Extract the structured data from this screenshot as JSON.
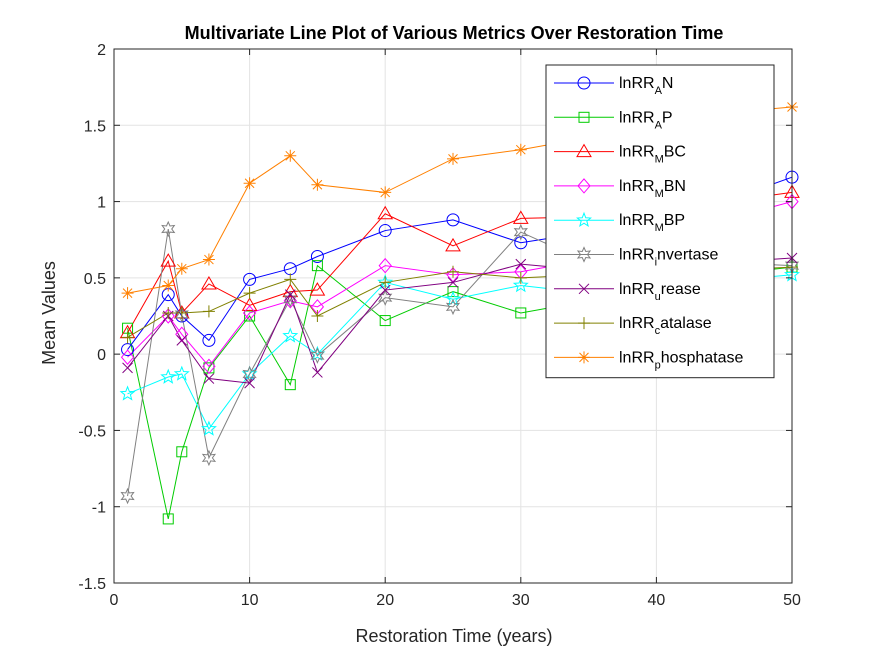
{
  "chart_data": {
    "type": "line",
    "title": "Multivariate Line Plot of Various Metrics Over Restoration Time",
    "xlabel": "Restoration Time (years)",
    "ylabel": "Mean Values",
    "xlim": [
      0,
      50
    ],
    "ylim": [
      -1.5,
      2
    ],
    "xticks": [
      0,
      10,
      20,
      30,
      40,
      50
    ],
    "yticks": [
      -1.5,
      -1,
      -0.5,
      0,
      0.5,
      1,
      1.5,
      2
    ],
    "xtick_labels": [
      "0",
      "10",
      "20",
      "30",
      "40",
      "50"
    ],
    "ytick_labels": [
      "-1.5",
      "-1",
      "-0.5",
      "0",
      "0.5",
      "1",
      "1.5",
      "2"
    ],
    "grid": true,
    "legend_position": "top-right",
    "x": [
      1,
      4,
      5,
      7,
      10,
      13,
      15,
      20,
      25,
      30,
      35,
      40,
      45,
      50
    ],
    "series": [
      {
        "legend": {
          "base": "lnRR",
          "sub": "A",
          "suffix": "N"
        },
        "color": "#0000ff",
        "marker": "circle",
        "values": [
          0.03,
          0.39,
          0.25,
          0.09,
          0.49,
          0.56,
          0.64,
          0.81,
          0.88,
          0.73,
          0.8,
          0.9,
          1.0,
          1.16
        ]
      },
      {
        "legend": {
          "base": "lnRR",
          "sub": "A",
          "suffix": "P"
        },
        "color": "#00cc00",
        "marker": "square",
        "values": [
          0.17,
          -1.08,
          -0.64,
          -0.09,
          0.25,
          -0.2,
          0.58,
          0.22,
          0.41,
          0.27,
          0.35,
          0.45,
          0.52,
          0.57
        ]
      },
      {
        "legend": {
          "base": "lnRR",
          "sub": "M",
          "suffix": "BC"
        },
        "color": "#ff0000",
        "marker": "triangle",
        "values": [
          0.14,
          0.61,
          0.27,
          0.46,
          0.32,
          0.41,
          0.42,
          0.92,
          0.71,
          0.89,
          0.9,
          0.95,
          1.0,
          1.06
        ]
      },
      {
        "legend": {
          "base": "lnRR",
          "sub": "M",
          "suffix": "BN"
        },
        "color": "#ff00ff",
        "marker": "diamond",
        "values": [
          -0.02,
          0.25,
          0.13,
          -0.08,
          0.27,
          0.35,
          0.31,
          0.58,
          0.52,
          0.54,
          0.62,
          0.75,
          0.88,
          1.0
        ]
      },
      {
        "legend": {
          "base": "lnRR",
          "sub": "M",
          "suffix": "BP"
        },
        "color": "#00ffff",
        "marker": "star5",
        "values": [
          -0.26,
          -0.15,
          -0.13,
          -0.49,
          -0.13,
          0.12,
          0.0,
          0.47,
          0.36,
          0.45,
          0.4,
          0.45,
          0.48,
          0.52
        ]
      },
      {
        "legend": {
          "base": "lnRR",
          "sub": "i",
          "suffix": "nvertase"
        },
        "color": "#808080",
        "marker": "star6",
        "values": [
          -0.93,
          0.82,
          0.26,
          -0.68,
          -0.13,
          0.36,
          -0.01,
          0.37,
          0.31,
          0.8,
          0.6,
          0.65,
          0.6,
          0.58
        ]
      },
      {
        "legend": {
          "base": "lnRR",
          "sub": "u",
          "suffix": "rease"
        },
        "color": "#800080",
        "marker": "x",
        "values": [
          -0.09,
          0.25,
          0.09,
          -0.16,
          -0.19,
          0.39,
          -0.12,
          0.42,
          0.47,
          0.59,
          0.55,
          0.58,
          0.6,
          0.63
        ]
      },
      {
        "legend": {
          "base": "lnRR",
          "sub": "c",
          "suffix": "atalase"
        },
        "color": "#808000",
        "marker": "plus",
        "values": [
          0.11,
          0.27,
          0.27,
          0.28,
          0.4,
          0.49,
          0.25,
          0.47,
          0.54,
          0.5,
          0.52,
          0.54,
          0.55,
          0.57
        ]
      },
      {
        "legend": {
          "base": "lnRR",
          "sub": "p",
          "suffix": "hosphatase"
        },
        "color": "#ff8000",
        "marker": "asterisk",
        "values": [
          0.4,
          0.45,
          0.56,
          0.62,
          1.12,
          1.3,
          1.11,
          1.06,
          1.28,
          1.34,
          1.42,
          1.5,
          1.58,
          1.62
        ]
      }
    ]
  }
}
